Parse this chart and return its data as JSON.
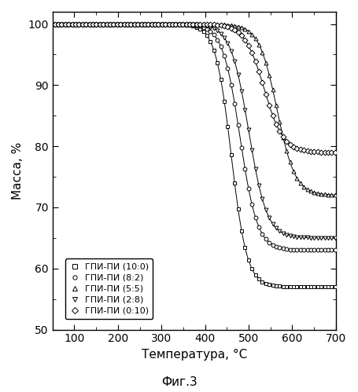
{
  "title": "",
  "xlabel": "Температура, °C",
  "ylabel": "Масса, %",
  "figcaption": "Фиг.3",
  "xlim": [
    50,
    700
  ],
  "ylim": [
    50,
    102
  ],
  "xticks": [
    100,
    200,
    300,
    400,
    500,
    600,
    700
  ],
  "yticks": [
    50,
    60,
    70,
    80,
    90,
    100
  ],
  "background_color": "#ffffff",
  "series": [
    {
      "label": "ГПИ-ПИ (10:0)",
      "marker": "s",
      "midpoint": 460,
      "final_value": 57,
      "k": 0.055
    },
    {
      "label": "ГПИ-ПИ (8:2)",
      "marker": "o",
      "midpoint": 480,
      "final_value": 63,
      "k": 0.05
    },
    {
      "label": "ГПИ-ПИ (5:5)",
      "marker": "^",
      "midpoint": 565,
      "final_value": 72,
      "k": 0.048
    },
    {
      "label": "ГПИ-ПИ (2:8)",
      "marker": "v",
      "midpoint": 500,
      "final_value": 65,
      "k": 0.048
    },
    {
      "label": "ГПИ-ПИ (0:10)",
      "marker": "D",
      "midpoint": 535,
      "final_value": 79,
      "k": 0.045
    }
  ]
}
